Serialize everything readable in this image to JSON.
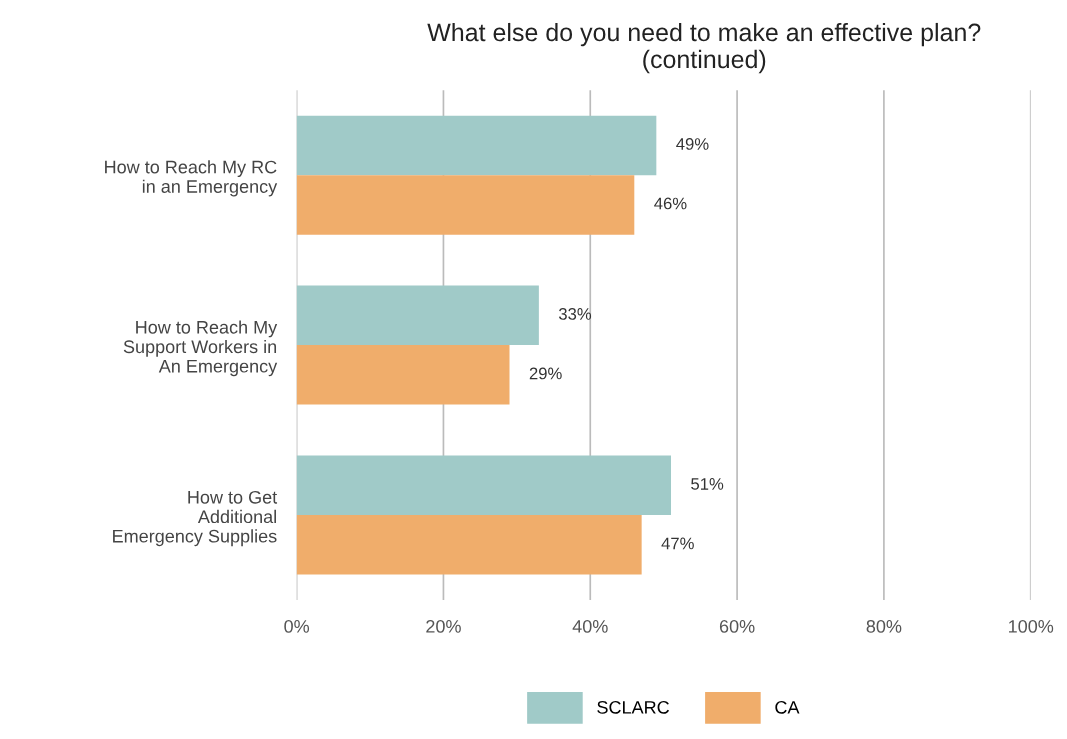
{
  "chart_data": {
    "type": "bar",
    "orientation": "horizontal",
    "title": "What else do you need to make an effective plan?\n(continued)",
    "categories": [
      "How to Reach My RC\nin an Emergency",
      "How to Reach My\nSupport Workers in\nAn Emergency",
      "How to Get\nAdditional\nEmergency Supplies"
    ],
    "series": [
      {
        "name": "SCLARC",
        "color": "#a0cac8",
        "values": [
          49,
          33,
          51
        ],
        "value_labels": [
          "49%",
          "33%",
          "51%"
        ]
      },
      {
        "name": "CA",
        "color": "#f0ad6b",
        "values": [
          46,
          29,
          47
        ],
        "value_labels": [
          "46%",
          "29%",
          "47%"
        ]
      }
    ],
    "xlim": [
      0,
      100
    ],
    "xticks": [
      {
        "value": 0,
        "label": "0%"
      },
      {
        "value": 20,
        "label": "20%"
      },
      {
        "value": 40,
        "label": "40%"
      },
      {
        "value": 60,
        "label": "60%"
      },
      {
        "value": 80,
        "label": "80%"
      },
      {
        "value": 100,
        "label": "100%"
      }
    ],
    "grid": "x",
    "legend": "bottom"
  }
}
